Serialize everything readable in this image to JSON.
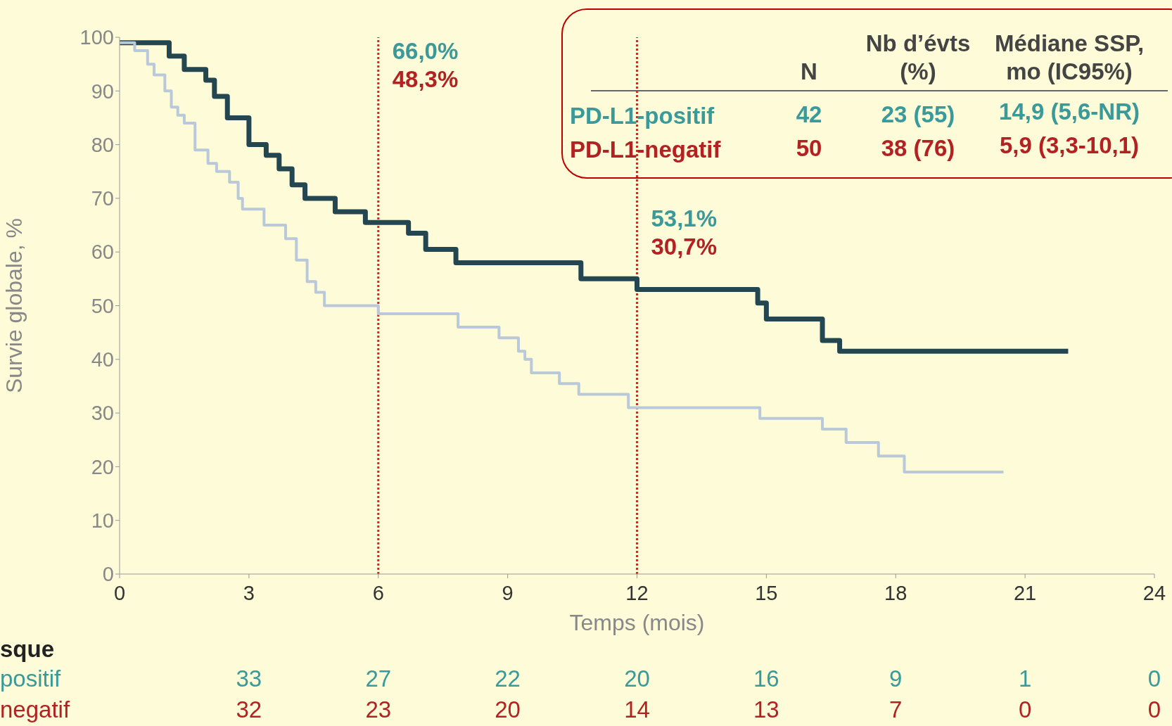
{
  "chart_data": [
    {
      "type": "step",
      "xlabel": "Temps (mois)",
      "ylabel": "Survie globale, %",
      "xlim": [
        0,
        24
      ],
      "xticks": [
        0,
        3,
        6,
        9,
        12,
        15,
        18,
        21,
        24
      ],
      "ylim": [
        0,
        100
      ],
      "yticks": [
        0,
        10,
        20,
        30,
        40,
        50,
        60,
        70,
        80,
        90,
        100
      ],
      "marker": "none",
      "line_style": "solid",
      "series": [
        {
          "color": "#234650",
          "x": [
            0,
            1.15,
            1.5,
            2.0,
            2.2,
            2.5,
            3.0,
            3.4,
            3.7,
            4.0,
            4.3,
            5.0,
            5.7,
            6.7,
            7.1,
            7.8,
            10.7,
            12.0,
            14.8,
            15.0,
            16.3,
            16.7,
            22.0
          ],
          "values": [
            99,
            96.5,
            94,
            92,
            89,
            85,
            80,
            78,
            75.5,
            72.5,
            70,
            67.5,
            65.5,
            63.5,
            60.5,
            58,
            55,
            53,
            50.5,
            47.5,
            43.5,
            41.5,
            41.5
          ]
        },
        {
          "color": "#b9c9da",
          "x": [
            0,
            0.35,
            0.65,
            0.8,
            1.05,
            1.2,
            1.35,
            1.5,
            1.75,
            2.05,
            2.25,
            2.55,
            2.75,
            2.85,
            3.35,
            3.85,
            4.1,
            4.35,
            4.55,
            4.75,
            6.0,
            7.85,
            8.8,
            9.25,
            9.4,
            9.55,
            10.2,
            10.65,
            11.8,
            14.85,
            16.3,
            16.85,
            17.6,
            18.2,
            20.5
          ],
          "values": [
            99,
            97.5,
            95,
            93,
            90,
            87,
            85.5,
            84,
            79,
            76.5,
            75,
            73,
            70,
            68,
            65,
            62.5,
            58.5,
            54.5,
            52.5,
            50,
            48.5,
            46,
            44,
            41.5,
            40,
            37.5,
            35.5,
            33.5,
            31,
            29,
            27,
            24.5,
            22,
            19,
            19
          ]
        }
      ],
      "ref_lines": [
        {
          "axis": "x",
          "value": 6,
          "color": "#d62728",
          "line_style": "dotted"
        },
        {
          "axis": "x",
          "value": 12,
          "color": "#d62728",
          "line_style": "dotted"
        }
      ],
      "annotations": [
        "66,0%",
        "48,3%",
        "53,1%",
        "30,7%"
      ]
    },
    {
      "type": "other",
      "categories": [
        "N",
        "Nb d’évts (%)",
        "Médiane SSP, mo (IC95%)"
      ],
      "y_categories": [
        "PD-L1-positif",
        "PD-L1-negatif"
      ],
      "colors": [
        "#3a9a9a",
        "#b22222"
      ],
      "cell_labels": [
        [
          "42",
          "23 (55)",
          "14,9 (5,6-NR)"
        ],
        [
          "50",
          "38 (76)",
          "5,9 (3,3-10,1)"
        ]
      ]
    },
    {
      "type": "other",
      "title": "sque",
      "categories": [
        null,
        null,
        null,
        null,
        null,
        null,
        null,
        null
      ],
      "y_categories": [
        "positif",
        "negatif"
      ],
      "colors": [
        "#3a9a9a",
        "#b22222"
      ],
      "cell_labels": [
        [
          "33",
          "27",
          "22",
          "20",
          "16",
          "9",
          "1",
          "0"
        ],
        [
          "32",
          "23",
          "20",
          "14",
          "13",
          "7",
          "0",
          "0"
        ]
      ]
    }
  ]
}
